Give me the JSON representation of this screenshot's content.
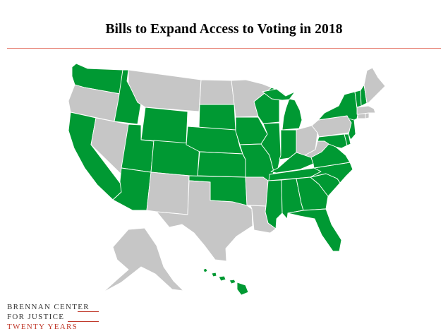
{
  "title": "Bills to Expand Access to Voting in 2018",
  "colors": {
    "bill_introduced": "#009933",
    "no_bill": "#c6c6c6",
    "rule": "#e8877a",
    "logo_accent": "#c0392b"
  },
  "map_data": {
    "type": "choropleth",
    "region": "United States",
    "states_with_bills": [
      "WA",
      "ID",
      "CA",
      "UT",
      "AZ",
      "WY",
      "CO",
      "NE",
      "KS",
      "OK",
      "SD",
      "IA",
      "MO",
      "IL",
      "IN",
      "MI",
      "KY",
      "TN",
      "MS",
      "AL",
      "GA",
      "FL",
      "SC",
      "NC",
      "VA",
      "MD",
      "DE",
      "NJ",
      "NY",
      "VT",
      "NH",
      "WI",
      "HI"
    ],
    "states_without_bills": [
      "OR",
      "NV",
      "MT",
      "ND",
      "MN",
      "NM",
      "TX",
      "AR",
      "LA",
      "OH",
      "WV",
      "PA",
      "CT",
      "RI",
      "MA",
      "ME",
      "AK"
    ]
  },
  "logo": {
    "line1": "BRENNAN CENTER",
    "line2": "FOR JUSTICE",
    "line3": "TWENTY YEARS"
  }
}
